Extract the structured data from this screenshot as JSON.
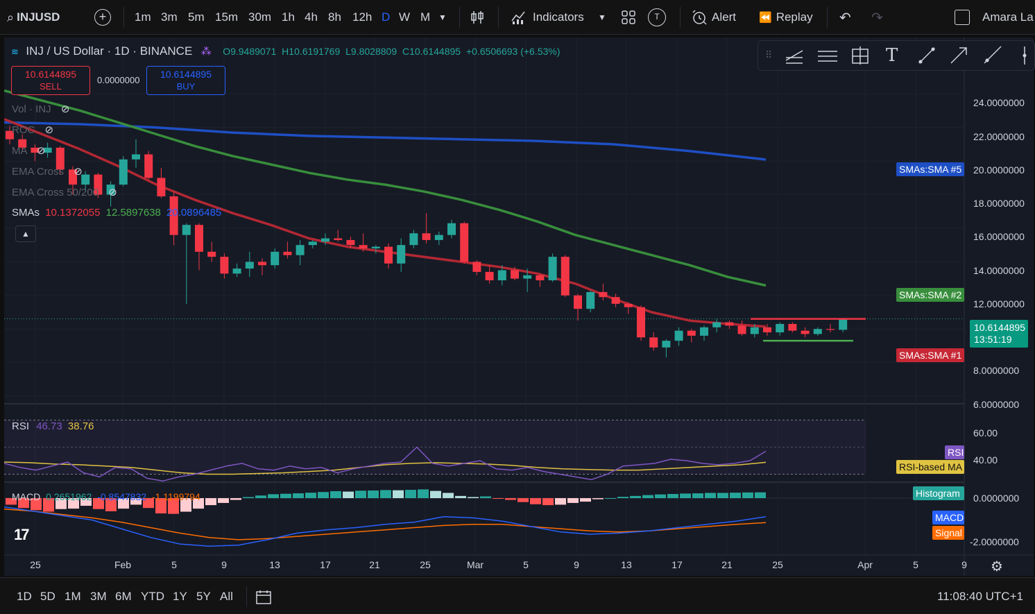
{
  "topbar": {
    "symbol": "INJUSD",
    "intervals": [
      "1m",
      "3m",
      "5m",
      "15m",
      "30m",
      "1h",
      "4h",
      "8h",
      "12h",
      "D",
      "W",
      "M"
    ],
    "active_interval": "D",
    "indicators_label": "Indicators",
    "alert_label": "Alert",
    "replay_label": "Replay",
    "user_name": "Amara La"
  },
  "legend": {
    "title": "INJ / US Dollar · 1D · BINANCE",
    "open": "O9.9489071",
    "high": "H10.6191769",
    "low": "L9.8028809",
    "close": "C10.6144895",
    "change": "+0.6506693 (+6.53%)"
  },
  "trade": {
    "sell_price": "10.6144895",
    "sell_label": "SELL",
    "spread": "0.0000000",
    "buy_price": "10.6144895",
    "buy_label": "BUY"
  },
  "indicators_list": {
    "vol": "Vol · INJ",
    "roc": "ROC",
    "ma": "MA",
    "ema_cross": "EMA Cross",
    "ema_cross_50_200": "EMA Cross 50/200",
    "smas_label": "SMAs",
    "sma1_value": "10.1372055",
    "sma2_value": "12.5897638",
    "sma5_value": "20.0896485"
  },
  "price_axis": {
    "ticks": [
      "24.0000000",
      "22.0000000",
      "20.0000000",
      "18.0000000",
      "16.0000000",
      "14.0000000",
      "12.0000000",
      "8.0000000",
      "6.0000000"
    ],
    "current_price": "10.6144895",
    "countdown": "13:51:19",
    "tag_sma5": "SMAs:SMA #5",
    "tag_sma2": "SMAs:SMA #2",
    "tag_sma1": "SMAs:SMA #1"
  },
  "rsi": {
    "label": "RSI",
    "value": "46.73",
    "ma_value": "38.76",
    "ticks": [
      "60.00",
      "40.00"
    ],
    "tag_rsi": "RSI",
    "tag_ma": "RSI-based MA"
  },
  "macd": {
    "label": "MACD",
    "hist": "0.2651962",
    "macd": "-0.8547832",
    "signal": "-1.1199794",
    "ticks": [
      "0.0000000",
      "-2.0000000"
    ],
    "tag_hist": "Histogram",
    "tag_macd": "MACD",
    "tag_signal": "Signal"
  },
  "time_axis": [
    "25",
    "Feb",
    "5",
    "9",
    "13",
    "17",
    "21",
    "25",
    "Mar",
    "5",
    "9",
    "13",
    "17",
    "21",
    "25",
    "Apr",
    "5",
    "9"
  ],
  "bottombar": {
    "ranges": [
      "1D",
      "5D",
      "1M",
      "3M",
      "6M",
      "YTD",
      "1Y",
      "5Y",
      "All"
    ],
    "clock": "11:08:40 UTC+1"
  },
  "colors": {
    "up": "#26a69a",
    "down": "#f23645",
    "sma1": "#b22833",
    "sma2": "#388e3c",
    "sma5": "#1e4fc4",
    "rsi": "#7e57c2",
    "rsi_ma": "#e0c341",
    "macd": "#2962ff",
    "signal": "#ff6d00"
  },
  "chart_data": {
    "type": "candlestick",
    "symbol": "INJ / US Dollar",
    "interval": "1D",
    "candles": [
      [
        21.8,
        22.1,
        21.0,
        21.3
      ],
      [
        21.3,
        21.6,
        20.6,
        20.8
      ],
      [
        20.8,
        21.0,
        20.0,
        20.5
      ],
      [
        20.5,
        21.1,
        20.2,
        20.8
      ],
      [
        20.8,
        20.9,
        19.2,
        19.5
      ],
      [
        19.5,
        19.7,
        18.0,
        18.6
      ],
      [
        18.6,
        19.4,
        18.2,
        19.2
      ],
      [
        19.2,
        19.3,
        17.8,
        18.0
      ],
      [
        18.0,
        18.8,
        17.3,
        18.6
      ],
      [
        18.6,
        20.3,
        18.5,
        20.1
      ],
      [
        20.1,
        21.3,
        19.6,
        20.4
      ],
      [
        20.4,
        20.6,
        18.9,
        19.0
      ],
      [
        19.0,
        19.6,
        17.8,
        17.9
      ],
      [
        17.9,
        18.2,
        15.0,
        15.6
      ],
      [
        15.6,
        16.3,
        11.5,
        16.2
      ],
      [
        16.2,
        16.3,
        13.5,
        14.6
      ],
      [
        14.6,
        15.2,
        14.0,
        14.3
      ],
      [
        14.3,
        14.5,
        13.0,
        13.3
      ],
      [
        13.3,
        13.9,
        13.1,
        13.6
      ],
      [
        13.6,
        14.6,
        13.1,
        14.0
      ],
      [
        14.0,
        14.2,
        13.2,
        13.8
      ],
      [
        13.8,
        14.8,
        13.6,
        14.6
      ],
      [
        14.6,
        15.2,
        14.2,
        14.4
      ],
      [
        14.4,
        15.3,
        13.8,
        15.0
      ],
      [
        15.0,
        15.3,
        14.8,
        15.2
      ],
      [
        15.2,
        15.7,
        15.0,
        15.4
      ],
      [
        15.4,
        15.9,
        15.2,
        15.3
      ],
      [
        15.3,
        15.5,
        14.8,
        15.0
      ],
      [
        15.0,
        15.7,
        14.6,
        14.8
      ],
      [
        14.8,
        15.0,
        14.5,
        14.9
      ],
      [
        14.9,
        15.1,
        13.6,
        13.9
      ],
      [
        13.9,
        15.4,
        13.4,
        15.0
      ],
      [
        15.0,
        15.9,
        14.8,
        15.7
      ],
      [
        15.7,
        16.9,
        15.1,
        15.3
      ],
      [
        15.3,
        15.8,
        15.0,
        15.6
      ],
      [
        15.6,
        16.5,
        15.4,
        16.3
      ],
      [
        16.3,
        16.4,
        13.9,
        14.0
      ],
      [
        14.0,
        14.1,
        13.2,
        13.4
      ],
      [
        13.4,
        13.8,
        12.7,
        12.9
      ],
      [
        12.9,
        13.8,
        12.6,
        13.5
      ],
      [
        13.5,
        13.7,
        12.9,
        13.0
      ],
      [
        13.0,
        13.6,
        12.2,
        13.2
      ],
      [
        13.2,
        13.3,
        12.5,
        12.9
      ],
      [
        12.9,
        14.5,
        12.8,
        14.3
      ],
      [
        14.3,
        14.4,
        11.9,
        12.0
      ],
      [
        12.0,
        12.1,
        10.5,
        11.2
      ],
      [
        11.2,
        12.3,
        11.0,
        12.2
      ],
      [
        12.2,
        12.7,
        11.7,
        11.9
      ],
      [
        11.9,
        12.1,
        11.3,
        11.5
      ],
      [
        11.5,
        11.6,
        10.9,
        11.3
      ],
      [
        11.3,
        11.4,
        9.3,
        9.5
      ],
      [
        9.5,
        9.8,
        8.7,
        8.9
      ],
      [
        8.9,
        9.4,
        8.3,
        9.3
      ],
      [
        9.3,
        10.1,
        9.0,
        9.9
      ],
      [
        9.9,
        10.0,
        9.2,
        9.6
      ],
      [
        9.6,
        10.2,
        9.3,
        10.1
      ],
      [
        10.1,
        10.6,
        9.8,
        10.4
      ],
      [
        10.4,
        10.5,
        10.0,
        10.2
      ],
      [
        10.2,
        10.5,
        9.6,
        9.7
      ],
      [
        9.7,
        10.3,
        9.5,
        10.1
      ],
      [
        10.1,
        10.3,
        9.6,
        9.8
      ],
      [
        9.8,
        10.4,
        9.6,
        10.3
      ],
      [
        10.3,
        10.4,
        9.8,
        9.9
      ],
      [
        9.9,
        10.1,
        9.5,
        9.7
      ],
      [
        9.7,
        10.1,
        9.6,
        10.0
      ],
      [
        10.0,
        10.3,
        9.8,
        9.95
      ],
      [
        9.95,
        10.62,
        9.8,
        10.61
      ]
    ],
    "sma1": [
      22.5,
      21.6,
      20.7,
      19.7,
      18.6,
      17.7,
      16.9,
      16.2,
      15.4,
      14.9,
      14.6,
      14.3,
      14.0,
      13.7,
      13.3,
      12.7,
      11.8,
      11.0,
      10.5,
      10.3,
      10.14
    ],
    "sma2": [
      24.2,
      23.6,
      23.0,
      22.3,
      21.6,
      20.9,
      20.3,
      19.8,
      19.3,
      18.9,
      18.6,
      18.2,
      17.7,
      17.1,
      16.4,
      15.6,
      15.0,
      14.4,
      13.8,
      13.1,
      12.59
    ],
    "sma5": [
      22.3,
      22.2,
      22.0,
      21.7,
      21.5,
      21.4,
      21.3,
      21.2,
      21.0,
      20.6,
      20.09
    ],
    "rsi": [
      38,
      35,
      33,
      36,
      39,
      31,
      28,
      35,
      34,
      27,
      25,
      28,
      30,
      33,
      36,
      38,
      34,
      33,
      36,
      34,
      35,
      31,
      34,
      36,
      38,
      39,
      50,
      38,
      36,
      38,
      40,
      34,
      33,
      35,
      32,
      30,
      28,
      26,
      30,
      36,
      37,
      38,
      41,
      40,
      38,
      37,
      38,
      40,
      47
    ],
    "rsi_ma": [
      39,
      38.5,
      37.5,
      37,
      36,
      35,
      33,
      31,
      30,
      30,
      30.5,
      31,
      32,
      33,
      35,
      37,
      38,
      38.5,
      38,
      37.5,
      36.5,
      35,
      34,
      33.5,
      33,
      33,
      34,
      35,
      36,
      37,
      38.76
    ],
    "macd_hist": [
      -0.3,
      -0.45,
      -0.55,
      -0.62,
      -0.5,
      -0.48,
      -0.35,
      -0.5,
      -0.6,
      -0.48,
      -0.3,
      -0.45,
      -0.7,
      -0.72,
      -0.62,
      -0.48,
      -0.32,
      -0.22,
      -0.08,
      0.05,
      0.12,
      0.18,
      0.2,
      0.22,
      0.25,
      0.28,
      0.32,
      0.3,
      0.34,
      0.35,
      0.37,
      0.36,
      0.38,
      0.4,
      0.33,
      0.24,
      0.1,
      0.05,
      0.08,
      -0.02,
      -0.08,
      -0.18,
      -0.28,
      -0.32,
      -0.3,
      -0.22,
      -0.16,
      -0.05,
      0.0,
      0.06,
      0.1,
      0.14,
      0.17,
      0.19,
      0.21,
      0.22,
      0.24,
      0.24,
      0.25,
      0.26,
      0.265
    ],
    "macd_line": [
      -0.4,
      -0.6,
      -0.8,
      -1.0,
      -1.4,
      -1.8,
      -2.1,
      -2.2,
      -2.15,
      -1.9,
      -1.6,
      -1.45,
      -1.35,
      -1.2,
      -1.1,
      -0.85,
      -0.9,
      -1.05,
      -1.3,
      -1.55,
      -1.65,
      -1.6,
      -1.5,
      -1.35,
      -1.2,
      -1.05,
      -0.85
    ],
    "signal_line": [
      -0.5,
      -0.6,
      -0.75,
      -0.9,
      -1.1,
      -1.35,
      -1.6,
      -1.8,
      -1.9,
      -1.85,
      -1.75,
      -1.65,
      -1.55,
      -1.45,
      -1.35,
      -1.25,
      -1.2,
      -1.2,
      -1.3,
      -1.4,
      -1.5,
      -1.55,
      -1.5,
      -1.4,
      -1.3,
      -1.2,
      -1.12
    ],
    "ylim": [
      6,
      26
    ],
    "rsi_ylim": [
      20,
      70
    ],
    "macd_ylim": [
      -2.3,
      0.6
    ]
  }
}
